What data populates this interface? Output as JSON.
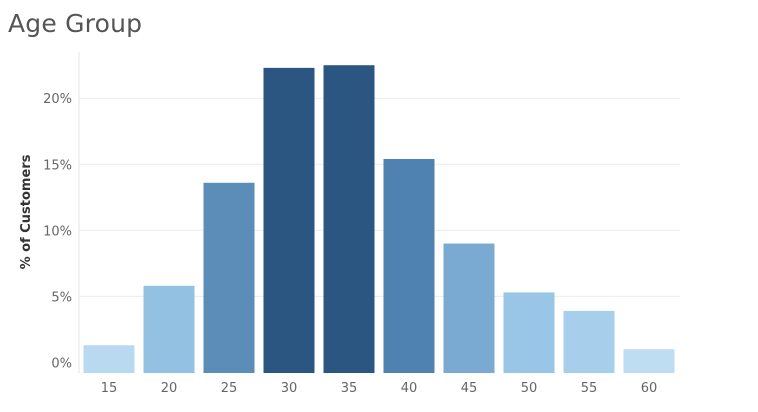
{
  "chart_data": {
    "type": "bar",
    "title": "Age Group",
    "xlabel": "",
    "ylabel": "% of Customers",
    "categories": [
      "15",
      "20",
      "25",
      "30",
      "35",
      "40",
      "45",
      "50",
      "55",
      "60"
    ],
    "values": [
      1.3,
      5.8,
      13.6,
      22.3,
      22.5,
      15.4,
      9.0,
      5.3,
      3.9,
      1.0
    ],
    "colors": [
      "#b8d9f0",
      "#93c1e2",
      "#5c8db8",
      "#2b5682",
      "#2b5682",
      "#4f82b1",
      "#7aa9d1",
      "#99c5e6",
      "#a7cfec",
      "#bfddf2"
    ],
    "yticks": [
      0,
      5,
      10,
      15,
      20
    ],
    "ytick_labels": [
      "0%",
      "5%",
      "10%",
      "15%",
      "20%"
    ],
    "ylim": [
      -0.8,
      23.5
    ],
    "grid": true,
    "legend": "none"
  }
}
